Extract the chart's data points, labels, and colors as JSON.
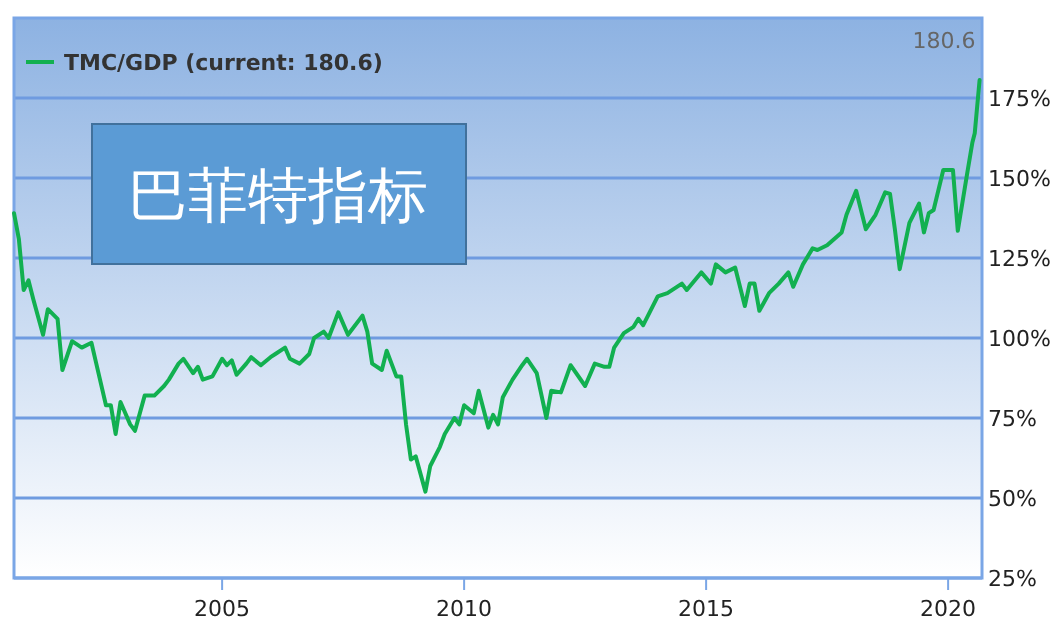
{
  "chart_data": {
    "type": "line",
    "x": [
      2000.7,
      2000.8,
      2000.9,
      2001.0,
      2001.1,
      2001.3,
      2001.4,
      2001.6,
      2001.7,
      2001.9,
      2002.1,
      2002.3,
      2002.4,
      2002.6,
      2002.7,
      2002.8,
      2002.9,
      2003.1,
      2003.2,
      2003.4,
      2003.6,
      2003.8,
      2003.9,
      2004.1,
      2004.2,
      2004.4,
      2004.5,
      2004.6,
      2004.8,
      2005.0,
      2005.1,
      2005.2,
      2005.3,
      2005.5,
      2005.6,
      2005.8,
      2006.0,
      2006.1,
      2006.3,
      2006.4,
      2006.6,
      2006.8,
      2006.9,
      2007.1,
      2007.2,
      2007.4,
      2007.6,
      2007.9,
      2008.0,
      2008.1,
      2008.3,
      2008.4,
      2008.6,
      2008.7,
      2008.8,
      2008.9,
      2009.0,
      2009.2,
      2009.3,
      2009.5,
      2009.6,
      2009.8,
      2009.9,
      2010.0,
      2010.2,
      2010.3,
      2010.5,
      2010.6,
      2010.7,
      2010.8,
      2011.0,
      2011.2,
      2011.3,
      2011.5,
      2011.7,
      2011.8,
      2012.0,
      2012.2,
      2012.5,
      2012.7,
      2012.9,
      2013.0,
      2013.1,
      2013.3,
      2013.5,
      2013.6,
      2013.7,
      2014.0,
      2014.2,
      2014.5,
      2014.6,
      2014.9,
      2015.1,
      2015.2,
      2015.4,
      2015.6,
      2015.8,
      2015.9,
      2016.0,
      2016.1,
      2016.3,
      2016.5,
      2016.7,
      2016.8,
      2017.0,
      2017.2,
      2017.3,
      2017.5,
      2017.8,
      2017.9,
      2018.1,
      2018.3,
      2018.5,
      2018.7,
      2018.8,
      2018.9,
      2019.0,
      2019.2,
      2019.4,
      2019.5,
      2019.6,
      2019.7,
      2019.9,
      2020.1,
      2020.2,
      2020.4,
      2020.5,
      2020.55,
      2020.65
    ],
    "series": [
      {
        "name": "TMC/GDP (current: 180.6)",
        "color": "#12b050",
        "values": [
          139,
          131,
          115,
          118,
          112,
          101,
          109,
          106,
          90,
          99,
          97,
          98.5,
          92,
          79,
          79,
          70,
          80,
          73,
          71,
          82,
          82,
          85,
          87,
          92,
          93.5,
          89,
          91,
          87,
          88,
          93.5,
          91.5,
          93,
          88.5,
          92,
          94,
          91.5,
          94,
          95,
          97,
          93.5,
          92,
          95,
          100,
          102,
          100,
          108,
          101,
          107,
          102,
          92,
          90,
          96,
          88,
          88,
          73,
          62,
          63,
          52,
          60,
          66,
          70,
          75,
          73,
          79,
          76.5,
          83.5,
          72,
          76,
          73,
          81.5,
          87,
          91.5,
          93.5,
          89,
          75,
          83.5,
          83,
          91.5,
          85,
          92,
          91,
          91,
          97,
          101.5,
          103.5,
          106,
          104,
          113,
          114,
          117,
          115,
          120.5,
          117,
          123,
          120.5,
          122,
          110,
          117,
          117,
          108.5,
          114,
          117,
          120.5,
          116,
          123,
          128,
          127.5,
          129,
          133,
          138.5,
          146,
          134,
          138.5,
          145.5,
          145,
          134,
          121.5,
          136,
          142,
          133,
          139,
          140,
          152.5,
          152.5,
          133.5,
          152,
          161,
          164,
          180.6
        ]
      }
    ],
    "xlim": [
      2000.7,
      2020.7
    ],
    "xticks": [
      2005,
      2010,
      2015,
      2020
    ],
    "ylim": [
      25,
      200
    ],
    "yticks": [
      {
        "value": 25,
        "label": "25%"
      },
      {
        "value": 50,
        "label": "50%"
      },
      {
        "value": 75,
        "label": "75%"
      },
      {
        "value": 100,
        "label": "100%"
      },
      {
        "value": 125,
        "label": "125%"
      },
      {
        "value": 150,
        "label": "150%"
      },
      {
        "value": 175,
        "label": "175%"
      }
    ],
    "grid": "y",
    "legend": "top left",
    "annotations": [
      "巴菲特指标",
      {
        "text": "180.6",
        "x": 2020.65,
        "y": 180.6
      }
    ]
  }
}
